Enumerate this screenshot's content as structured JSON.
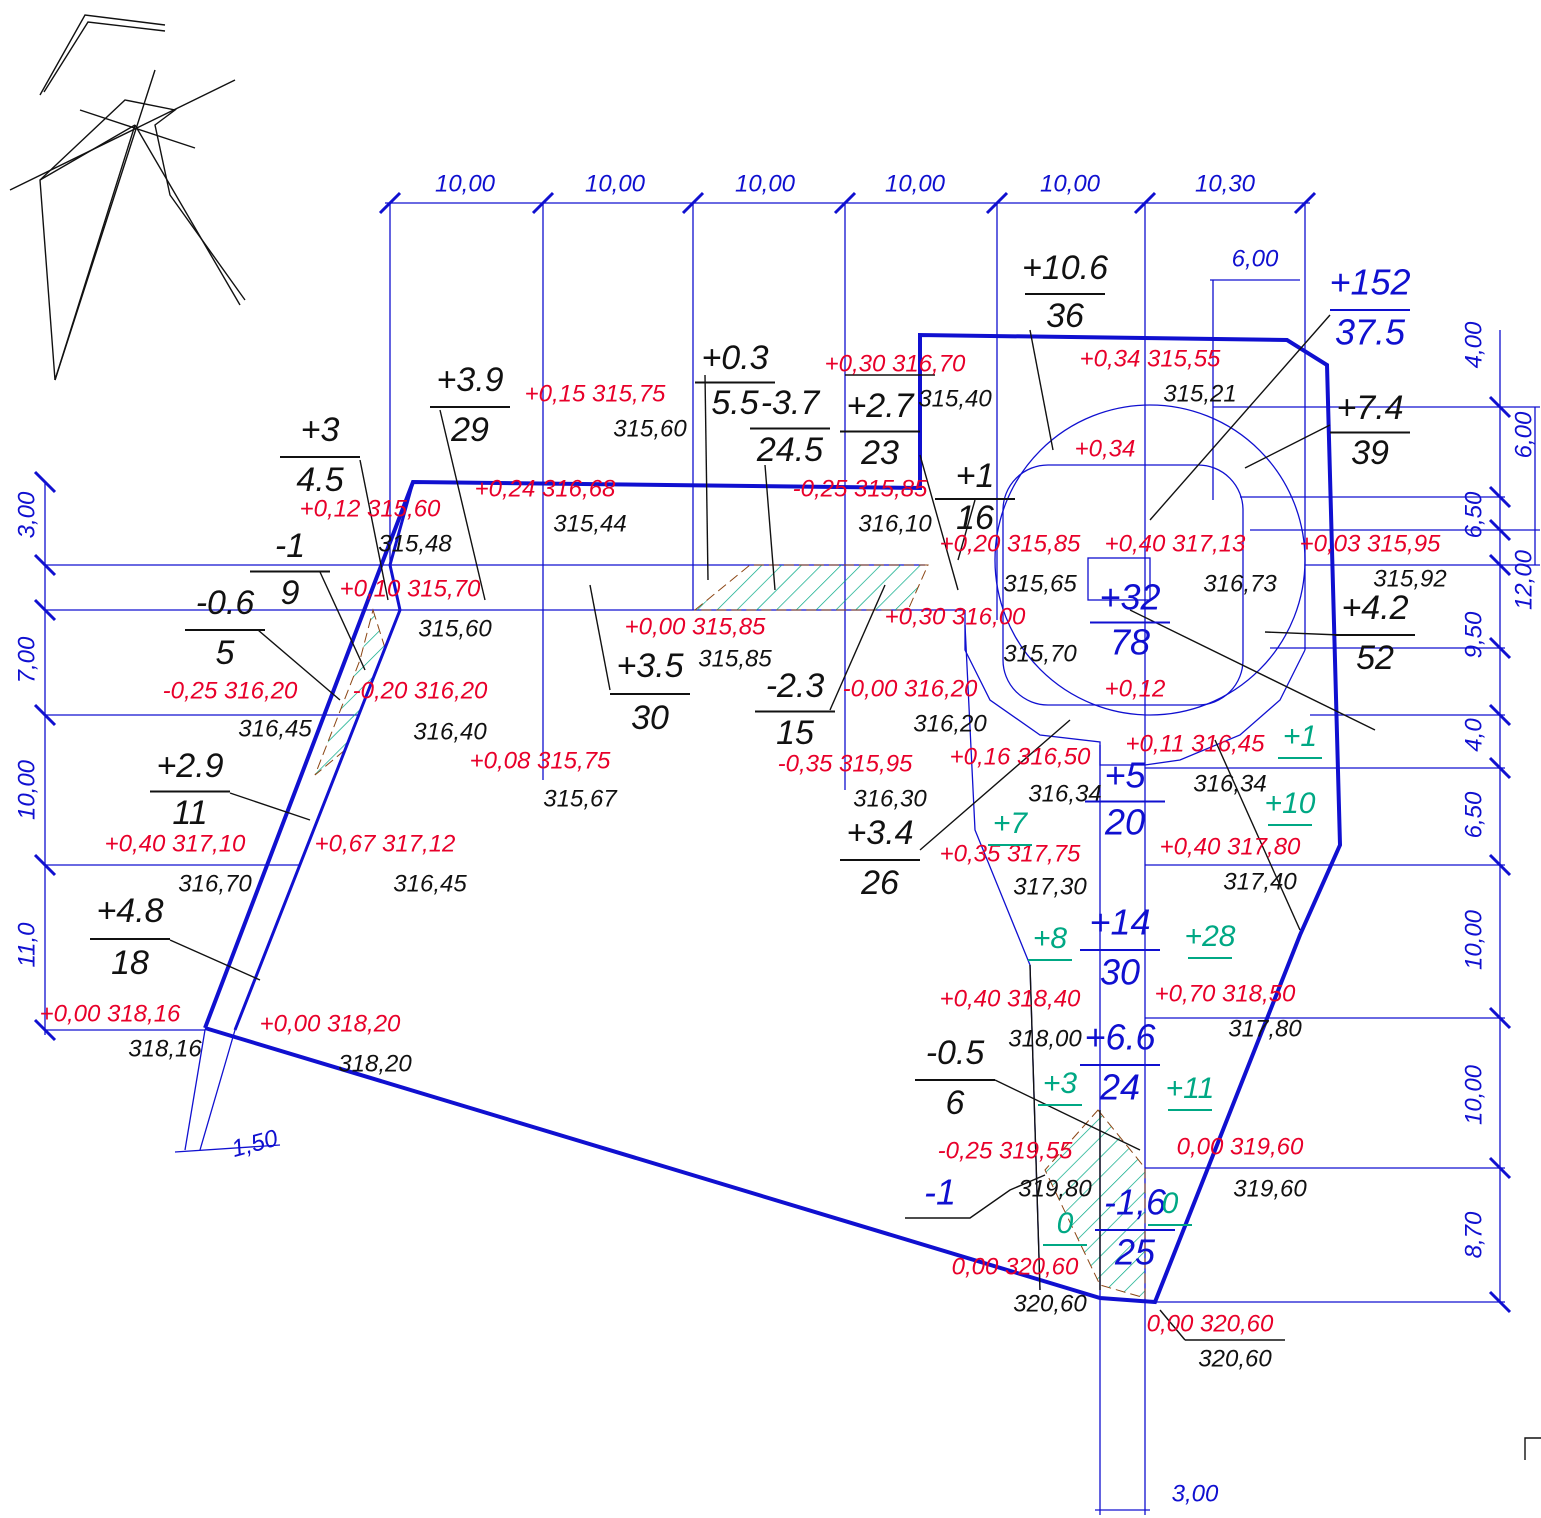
{
  "dimensions_top": [
    "10,00",
    "10,00",
    "10,00",
    "10,00",
    "10,00",
    "10,30",
    "6,00"
  ],
  "dimensions_right": [
    "4,00",
    "6,00",
    "6,50",
    "12,00",
    "9,50",
    "4,0",
    "6,50",
    "10,00",
    "10,00",
    "8,70"
  ],
  "dimensions_left": [
    "3,00",
    "7,00",
    "10,00",
    "11,0"
  ],
  "dimensions_bottom": [
    "1,50",
    "3,00"
  ],
  "red_labels": [
    "+0,15 315,75",
    "+0,30 316,70",
    "+0,34 315,55",
    "+0,34",
    "+0,24 316,68",
    "-0,25 315,85",
    "+0,12 315,60",
    "+0,20 315,85",
    "+0,40 317,13",
    "+0,03 315,95",
    "+0,10 315,70",
    "+0,00 315,85",
    "+0,30 316,00",
    "-0,25 316,20",
    "-0,20 316,20",
    "-0,00 316,20",
    "+0,12",
    "+0,08 315,75",
    "-0,35 315,95",
    "+0,16 316,50",
    "+0,11 316,45",
    "+0,40 317,10",
    "+0,67 317,12",
    "+0,35 317,75",
    "+0,40 317,80",
    "+0,40 318,40",
    "+0,70 318,50",
    "+0,00 318,16",
    "+0,00 318,20",
    "-0,25 319,55",
    "0,00 319,60",
    "0,00 320,60",
    "0,00 320,60"
  ],
  "black_labels": [
    "315,60",
    "315,40",
    "315,21",
    "315,44",
    "316,10",
    "315,48",
    "315,65",
    "316,73",
    "315,92",
    "315,60",
    "315,85",
    "315,70",
    "316,45",
    "316,40",
    "316,20",
    "315,67",
    "316,30",
    "316,34",
    "316,34",
    "316,70",
    "316,45",
    "317,30",
    "317,40",
    "318,00",
    "317,80",
    "318,16",
    "318,20",
    "319,80",
    "319,60",
    "320,60",
    "320,60"
  ],
  "volume_fractions": [
    {
      "num": "+10.6",
      "den": "36"
    },
    {
      "num": "+3.9",
      "den": "29"
    },
    {
      "num": "+0.3",
      "den": "5.5"
    },
    {
      "num": "-3.7",
      "den": "24.5"
    },
    {
      "num": "+2.7",
      "den": "23"
    },
    {
      "num": "+3",
      "den": "4.5"
    },
    {
      "num": "+1",
      "den": "16"
    },
    {
      "num": "-1",
      "den": "9"
    },
    {
      "num": "-0.6",
      "den": "5"
    },
    {
      "num": "+7.4",
      "den": "39"
    },
    {
      "num": "+4.2",
      "den": "52"
    },
    {
      "num": "+3.5",
      "den": "30"
    },
    {
      "num": "-2.3",
      "den": "15"
    },
    {
      "num": "+2.9",
      "den": "11"
    },
    {
      "num": "+3.4",
      "den": "26"
    },
    {
      "num": "+4.8",
      "den": "18"
    },
    {
      "num": "-0.5",
      "den": "6"
    }
  ],
  "blue_fractions": [
    {
      "num": "+152",
      "den": "37.5"
    },
    {
      "num": "+32",
      "den": "78"
    },
    {
      "num": "+5",
      "den": "20"
    },
    {
      "num": "+14",
      "den": "30"
    },
    {
      "num": "+6.6",
      "den": "24"
    },
    {
      "num": "-1,6",
      "den": "25"
    }
  ],
  "blue_single": [
    "-1"
  ],
  "green_labels": [
    "+1",
    "+10",
    "+7",
    "+8",
    "+28",
    "+3",
    "+11",
    "0",
    "0"
  ]
}
